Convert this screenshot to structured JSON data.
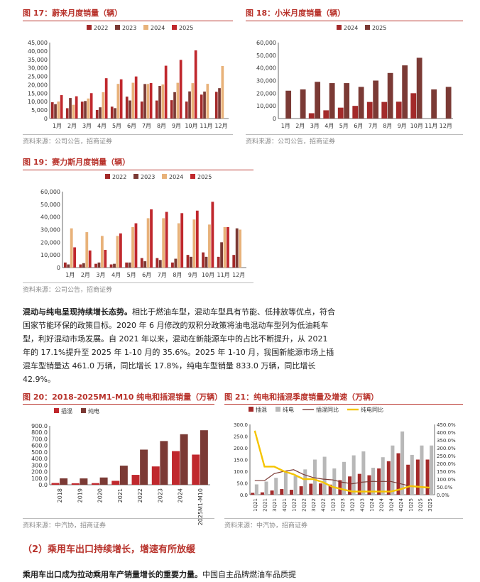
{
  "fig17": {
    "title": "图 17：蔚来月度销量（辆）",
    "source": "资料来源：公司公告，招商证券"
  },
  "fig18": {
    "title": "图 18：小米月度销量（辆）",
    "source": "资料来源：公司公告，招商证券"
  },
  "fig19": {
    "title": "图 19：赛力斯月度销量（辆）",
    "source": "资料来源：公司公告，招商证券"
  },
  "paragraph": {
    "bold": "混动与纯电呈现持续增长态势。",
    "text": "相比于燃油车型，混动车型具有节能、低排放等优点，符合国家节能环保的政策目标。2020 年 6 月修改的双积分政策将油电混动车型列为低油耗车型，利好混动市场发展。自 2021 年以来，混动在新能源车中的占比不断提升，从 2021 年的 17.1%提升至 2025 年 1-10 月的 35.6%。2025 年 1-10 月，我国新能源市场上插混车型销量达 461.0 万辆，同比增长 17.8%，纯电车型销量 833.0 万辆，同比增长 42.9%。"
  },
  "fig20": {
    "title": "图 20：2018-2025M1-M10 纯电和插混销量（万辆）",
    "source": "资料来源：中汽协，招商证券"
  },
  "fig21": {
    "title": "图 21：纯电和插混季度销量及增速（万辆）",
    "source": "资料来源：中汽协，招商证券"
  },
  "section": {
    "heading": "（2）乘用车出口持续增长，增速有所放缓"
  },
  "bottom": {
    "bold": "乘用车出口成为拉动乘用车产销量增长的重要力量。",
    "text": "中国自主品牌燃油车品质提"
  },
  "colors": {
    "c2022": "#a32a2a",
    "c2023": "#7b3a35",
    "c2024": "#e8b27a",
    "c2025": "#c0282d",
    "accent": "#b8322b",
    "phev": "#a32a2a",
    "bev": "#b8b8b8",
    "yellow": "#f5c400"
  },
  "chart_data": [
    {
      "id": "fig17",
      "type": "bar",
      "categories": [
        "1月",
        "2月",
        "3月",
        "4月",
        "5月",
        "6月",
        "7月",
        "8月",
        "9月",
        "10月",
        "11月",
        "12月"
      ],
      "ylim": [
        0,
        45000
      ],
      "yticks": [
        "0",
        "5,000",
        "10,000",
        "15,000",
        "20,000",
        "25,000",
        "30,000",
        "35,000",
        "40,000",
        "45,000"
      ],
      "legend_position": "top",
      "series": [
        {
          "name": "2022",
          "color": "#a32a2a",
          "values": [
            9652,
            6131,
            9985,
            5074,
            7024,
            12961,
            10052,
            10677,
            10878,
            10059,
            14178,
            15815
          ]
        },
        {
          "name": "2023",
          "color": "#7b3a35",
          "values": [
            8506,
            12157,
            10378,
            6658,
            6155,
            10707,
            20462,
            19329,
            15641,
            16074,
            15959,
            18012
          ]
        },
        {
          "name": "2024",
          "color": "#e8b27a",
          "values": [
            10055,
            8132,
            11866,
            15620,
            20544,
            21209,
            20498,
            20176,
            21181,
            20976,
            20575,
            31138
          ]
        },
        {
          "name": "2025",
          "color": "#c0282d",
          "values": [
            13863,
            13192,
            15039,
            23900,
            23231,
            24925,
            21017,
            31305,
            34749,
            40397,
            null,
            null
          ]
        }
      ]
    },
    {
      "id": "fig18",
      "type": "bar",
      "categories": [
        "1月",
        "2月",
        "3月",
        "4月",
        "5月",
        "6月",
        "7月",
        "8月",
        "9月",
        "10月",
        "11月",
        "12月"
      ],
      "ylim": [
        0,
        60000
      ],
      "yticks": [
        "0",
        "10,000",
        "20,000",
        "30,000",
        "40,000",
        "50,000",
        "60,000"
      ],
      "legend_position": "top",
      "series": [
        {
          "name": "2024",
          "color": "#a32a2a",
          "values": [
            null,
            null,
            4200,
            6500,
            8600,
            10000,
            13100,
            13100,
            13300,
            20000,
            null,
            null
          ]
        },
        {
          "name": "2025",
          "color": "#7b3a35",
          "values": [
            22000,
            23000,
            29000,
            28000,
            28000,
            25000,
            30000,
            36000,
            42000,
            48000,
            23000,
            25000
          ]
        }
      ]
    },
    {
      "id": "fig19",
      "type": "bar",
      "categories": [
        "1月",
        "2月",
        "3月",
        "4月",
        "5月",
        "6月",
        "7月",
        "8月",
        "9月",
        "10月",
        "11月",
        "12月"
      ],
      "ylim": [
        0,
        60000
      ],
      "yticks": [
        "0",
        "10,000",
        "20,000",
        "30,000",
        "40,000",
        "50,000",
        "60,000"
      ],
      "legend_position": "top",
      "series": [
        {
          "name": "2022",
          "color": "#a32a2a",
          "values": [
            4000,
            2500,
            3000,
            2500,
            4000,
            7500,
            7500,
            4000,
            10000,
            12000,
            8500,
            10000
          ]
        },
        {
          "name": "2023",
          "color": "#7b3a35",
          "values": [
            2500,
            3500,
            4000,
            3000,
            4000,
            5000,
            6000,
            7000,
            8500,
            8500,
            20000,
            31000
          ]
        },
        {
          "name": "2024",
          "color": "#e8b27a",
          "values": [
            31000,
            28000,
            25000,
            25000,
            32000,
            39000,
            39000,
            35000,
            38000,
            34000,
            32000,
            30000
          ]
        },
        {
          "name": "2025",
          "color": "#c0282d",
          "values": [
            16000,
            13500,
            14000,
            27000,
            35000,
            46000,
            44000,
            43000,
            45000,
            52000,
            32000,
            null
          ]
        }
      ]
    },
    {
      "id": "fig20",
      "type": "bar",
      "categories": [
        "2018",
        "2019",
        "2020",
        "2021",
        "2022",
        "2023",
        "2024",
        "2025M1-M10"
      ],
      "ylim": [
        0,
        900
      ],
      "yticks": [
        "0.0",
        "100.0",
        "200.0",
        "300.0",
        "400.0",
        "500.0",
        "600.0",
        "700.0",
        "800.0",
        "900.0"
      ],
      "legend_position": "top-left",
      "series": [
        {
          "name": "插混",
          "color": "#c0282d",
          "values": [
            27,
            23,
            25,
            60,
            151,
            280,
            514,
            461
          ]
        },
        {
          "name": "纯电",
          "color": "#7b3a35",
          "values": [
            98,
            97,
            111,
            292,
            537,
            668,
            772,
            833
          ]
        }
      ]
    },
    {
      "id": "fig21",
      "type": "bar",
      "categories": [
        "1Q21",
        "2Q21",
        "3Q21",
        "4Q21",
        "1Q22",
        "2Q22",
        "3Q22",
        "4Q22",
        "1Q23",
        "2Q23",
        "3Q23",
        "4Q23",
        "1Q24",
        "2Q24",
        "3Q24",
        "4Q24",
        "1Q25",
        "2Q25",
        "3Q25"
      ],
      "ylim": [
        0,
        300
      ],
      "yticks": [
        "0.0",
        "50.0",
        "100.0",
        "150.0",
        "200.0",
        "250.0",
        "300.0"
      ],
      "y2lim": [
        0,
        4.5
      ],
      "y2ticks": [
        "0.0%",
        "50.0%",
        "100.0%",
        "150.0%",
        "200.0%",
        "250.0%",
        "300.0%",
        "350.0%",
        "400.0%",
        "450.0%"
      ],
      "legend_position": "top",
      "series": [
        {
          "name": "插混",
          "color": "#a32a2a",
          "kind": "bar",
          "values": [
            8,
            10,
            18,
            24,
            21,
            36,
            47,
            48,
            43,
            62,
            78,
            89,
            83,
            112,
            143,
            177,
            128,
            150,
            150
          ]
        },
        {
          "name": "纯电",
          "color": "#b8b8b8",
          "kind": "bar",
          "values": [
            44,
            56,
            72,
            100,
            80,
            108,
            150,
            162,
            112,
            140,
            168,
            185,
            115,
            160,
            210,
            270,
            170,
            210,
            210
          ]
        },
        {
          "name": "插混同比",
          "color": "#7b3a35",
          "kind": "line",
          "axis": "right",
          "values": [
            0.9,
            0.9,
            1.35,
            1.5,
            1.6,
            1.3,
            1.1,
            1.0,
            0.95,
            0.8,
            0.7,
            0.8,
            0.85,
            0.85,
            0.85,
            0.7,
            0.55,
            0.5,
            0.4
          ]
        },
        {
          "name": "纯电同比",
          "color": "#f5c400",
          "kind": "line",
          "axis": "right",
          "values": [
            4.1,
            1.8,
            1.8,
            1.5,
            1.3,
            1.0,
            1.0,
            0.8,
            0.5,
            0.35,
            0.2,
            0.2,
            0.2,
            0.2,
            0.2,
            0.35,
            0.55,
            0.5,
            0.45
          ]
        }
      ]
    }
  ]
}
